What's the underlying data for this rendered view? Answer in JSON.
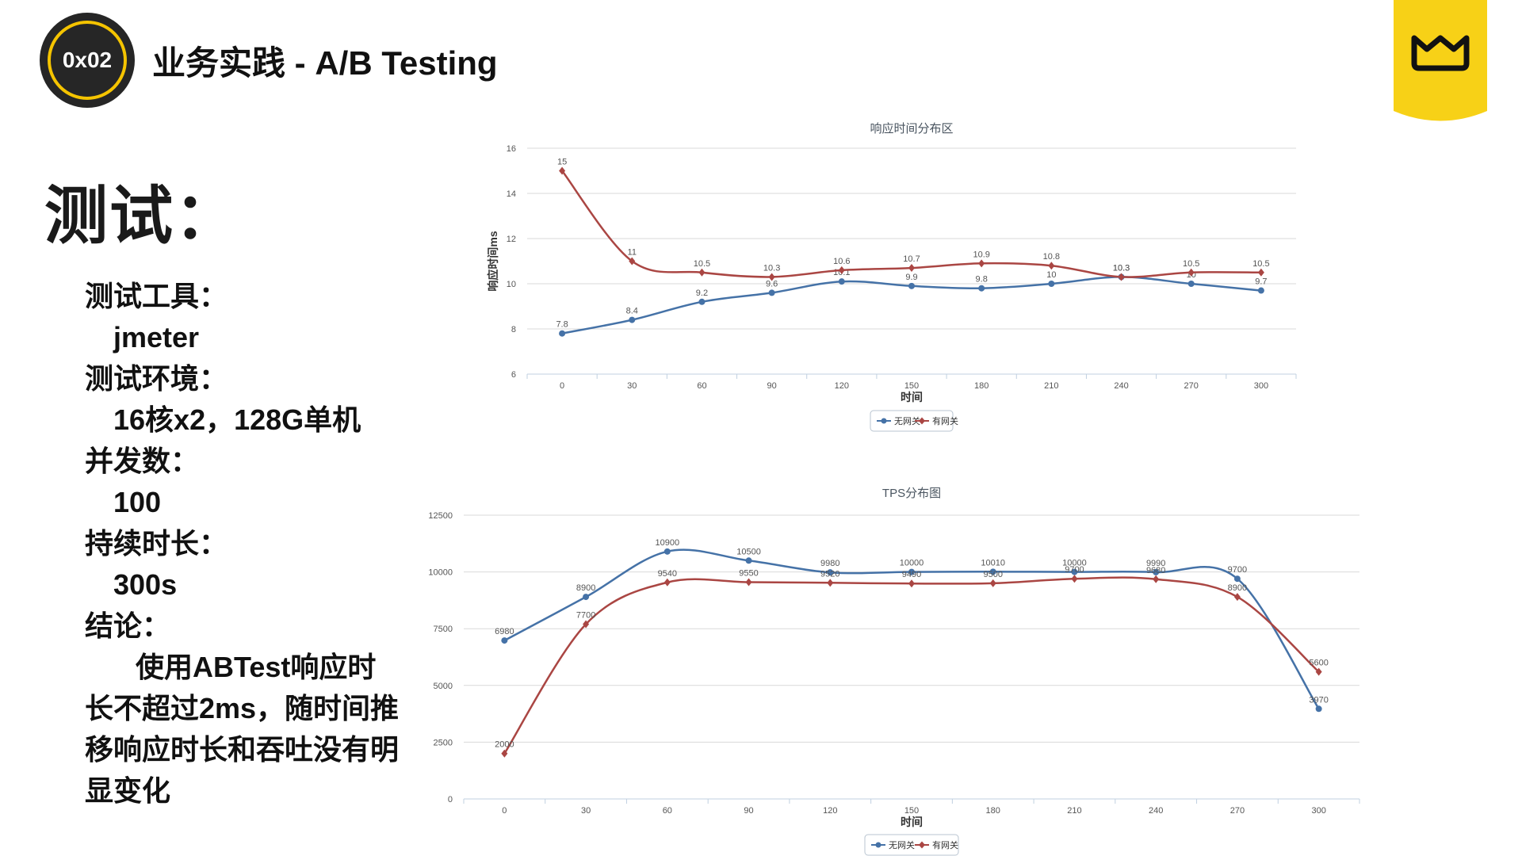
{
  "header": {
    "badge": "0x02",
    "title": "业务实践 - A/B Testing"
  },
  "heading": "测试：",
  "notes": {
    "tool_label": "测试工具：",
    "tool_value": "jmeter",
    "env_label": "测试环境：",
    "env_value": "16核x2，128G单机",
    "concurrency_label": "并发数：",
    "concurrency_value": "100",
    "duration_label": "持续时长：",
    "duration_value": "300s",
    "conclusion_label": "结论：",
    "conclusion_text": "使用ABTest响应时长不超过2ms，随时间推移响应时长和吞吐没有明显变化"
  },
  "colors": {
    "series_blue": "#4572a7",
    "series_red": "#aa4643",
    "badge_ring": "#f5c400",
    "logo_yellow": "#f7d117"
  },
  "chart_data": [
    {
      "type": "line",
      "title": "响应时间分布区",
      "xlabel": "时间",
      "ylabel": "响应时间ms",
      "x": [
        0,
        30,
        60,
        90,
        120,
        150,
        180,
        210,
        240,
        270,
        300
      ],
      "ylim": [
        6,
        16
      ],
      "yticks": [
        6,
        8,
        10,
        12,
        14,
        16
      ],
      "grid": true,
      "legend_position": "bottom-center",
      "series": [
        {
          "name": "无网关",
          "values": [
            7.8,
            8.4,
            9.2,
            9.6,
            10.1,
            9.9,
            9.8,
            10,
            10.3,
            10,
            9.7
          ]
        },
        {
          "name": "有网关",
          "values": [
            15,
            11,
            10.5,
            10.3,
            10.6,
            10.7,
            10.9,
            10.8,
            10.3,
            10.5,
            10.5
          ]
        }
      ]
    },
    {
      "type": "line",
      "title": "TPS分布图",
      "xlabel": "时间",
      "ylabel": "",
      "x": [
        0,
        30,
        60,
        90,
        120,
        150,
        180,
        210,
        240,
        270,
        300
      ],
      "ylim": [
        0,
        12500
      ],
      "yticks": [
        0,
        2500,
        5000,
        7500,
        10000,
        12500
      ],
      "grid": true,
      "legend_position": "bottom-center",
      "series": [
        {
          "name": "无网关",
          "values": [
            6980,
            8900,
            10900,
            10500,
            9980,
            10000,
            10010,
            10000,
            9990,
            9700,
            3970
          ]
        },
        {
          "name": "有网关",
          "values": [
            2000,
            7700,
            9540,
            9550,
            9520,
            9490,
            9500,
            9700,
            9680,
            8900,
            5600
          ]
        }
      ]
    }
  ]
}
